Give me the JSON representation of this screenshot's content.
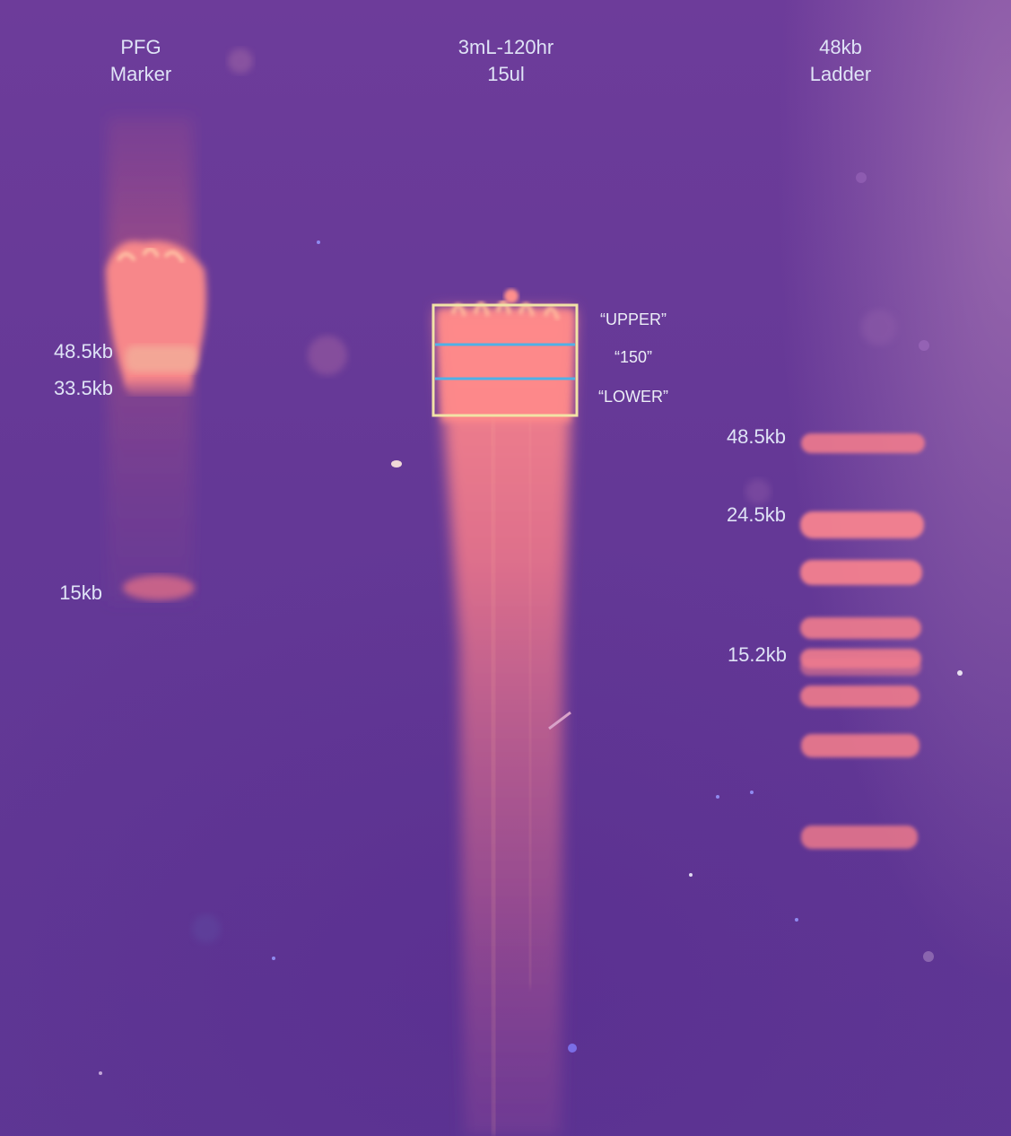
{
  "lanes": [
    {
      "id": "pfg",
      "title_lines": [
        "PFG",
        "Marker"
      ]
    },
    {
      "id": "sample",
      "title_lines": [
        "3mL-120hr",
        "15ul"
      ]
    },
    {
      "id": "ladder",
      "title_lines": [
        "48kb",
        "Ladder"
      ]
    }
  ],
  "pfg_sizes": [
    "48.5kb",
    "33.5kb",
    "15kb"
  ],
  "ladder_sizes": [
    "48.5kb",
    "24.5kb",
    "15.2kb"
  ],
  "cut_annotations": [
    "“UPPER”",
    "“150”",
    "“LOWER”"
  ],
  "colors": {
    "gel_background": "#643896",
    "band": "#f27a8e",
    "box_outline": "#f2e3a6",
    "cut_line": "#4fb0e6",
    "label_text": "#dfe3f6"
  }
}
